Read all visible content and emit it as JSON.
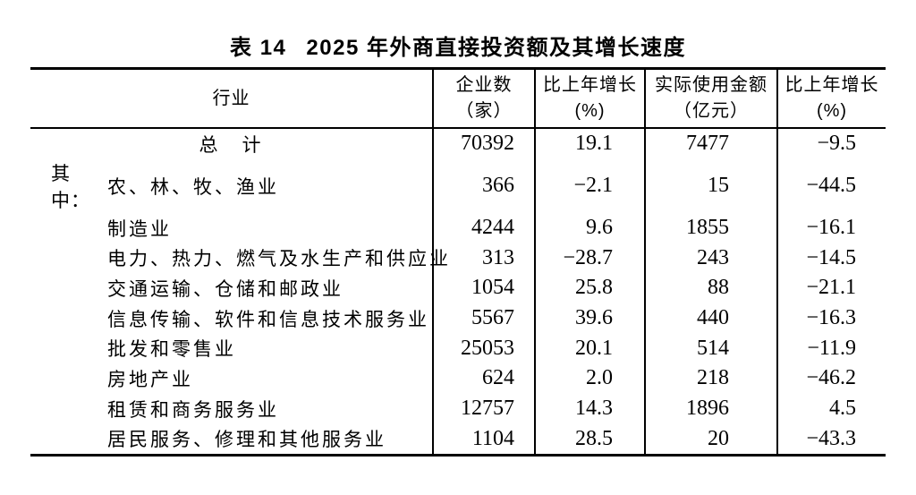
{
  "title": {
    "label": "表 14",
    "text": "2025 年外商直接投资额及其增长速度"
  },
  "table": {
    "columns": [
      {
        "title": "行业",
        "unit": ""
      },
      {
        "title": "企业数",
        "unit": "（家）"
      },
      {
        "title": "比上年增长",
        "unit": "(%)"
      },
      {
        "title": "实际使用金额",
        "unit": "（亿元）"
      },
      {
        "title": "比上年增长",
        "unit": "(%)"
      }
    ],
    "rows": [
      {
        "prefix": "",
        "industry": "总　计",
        "center": true,
        "enterprises": "70392",
        "enterprises_growth": "19.1",
        "amount": "7477",
        "amount_growth": "-9.5"
      },
      {
        "prefix": "其中：",
        "industry": "农、林、牧、渔业",
        "center": false,
        "enterprises": "366",
        "enterprises_growth": "-2.1",
        "amount": "15",
        "amount_growth": "-44.5"
      },
      {
        "prefix": "",
        "industry": "制造业",
        "center": false,
        "enterprises": "4244",
        "enterprises_growth": "9.6",
        "amount": "1855",
        "amount_growth": "-16.1"
      },
      {
        "prefix": "",
        "industry": "电力、热力、燃气及水生产和供应业",
        "center": false,
        "enterprises": "313",
        "enterprises_growth": "-28.7",
        "amount": "243",
        "amount_growth": "-14.5"
      },
      {
        "prefix": "",
        "industry": "交通运输、仓储和邮政业",
        "center": false,
        "enterprises": "1054",
        "enterprises_growth": "25.8",
        "amount": "88",
        "amount_growth": "-21.1"
      },
      {
        "prefix": "",
        "industry": "信息传输、软件和信息技术服务业",
        "center": false,
        "enterprises": "5567",
        "enterprises_growth": "39.6",
        "amount": "440",
        "amount_growth": "-16.3"
      },
      {
        "prefix": "",
        "industry": "批发和零售业",
        "center": false,
        "enterprises": "25053",
        "enterprises_growth": "20.1",
        "amount": "514",
        "amount_growth": "-11.9"
      },
      {
        "prefix": "",
        "industry": "房地产业",
        "center": false,
        "enterprises": "624",
        "enterprises_growth": "2.0",
        "amount": "218",
        "amount_growth": "-46.2"
      },
      {
        "prefix": "",
        "industry": "租赁和商务服务业",
        "center": false,
        "enterprises": "12757",
        "enterprises_growth": "14.3",
        "amount": "1896",
        "amount_growth": "4.5"
      },
      {
        "prefix": "",
        "industry": "居民服务、修理和其他服务业",
        "center": false,
        "enterprises": "1104",
        "enterprises_growth": "28.5",
        "amount": "20",
        "amount_growth": "-43.3"
      }
    ]
  }
}
